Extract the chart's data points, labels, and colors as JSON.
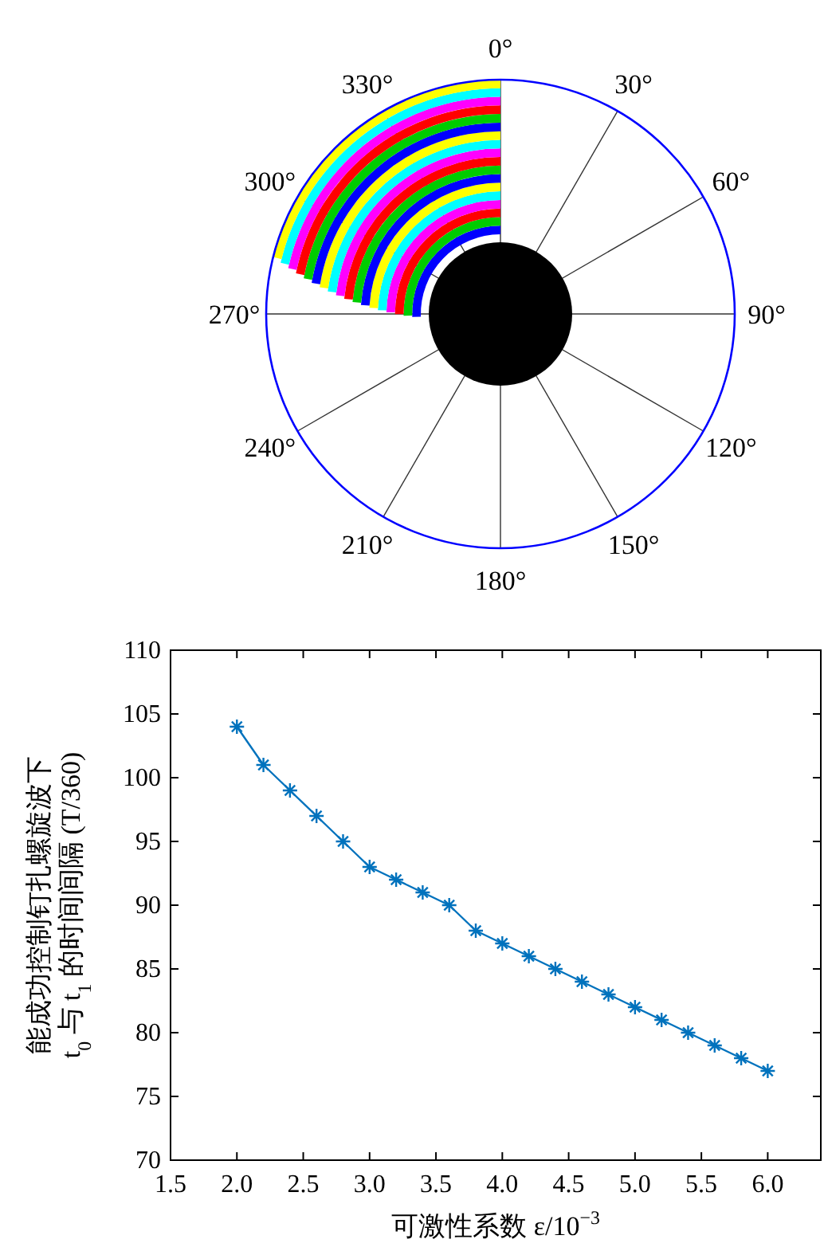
{
  "chart_data": [
    {
      "type": "other",
      "categories": [
        "0°",
        "30°",
        "60°",
        "90°",
        "120°",
        "150°",
        "180°",
        "210°",
        "240°",
        "270°",
        "300°",
        "330°"
      ]
    },
    {
      "type": "line",
      "xlabel": "可激性系数 ε/10$^{−3}$",
      "ylabel": "能成功控制钉扎螺旋波下\nt$_{0}$ 与 t$_{1}$ 的时间间隔 (T/360)",
      "x": [
        2.0,
        2.2,
        2.4,
        2.6,
        2.8,
        3.0,
        3.2,
        3.4,
        3.6,
        3.8,
        4.0,
        4.2,
        4.4,
        4.6,
        4.8,
        5.0,
        5.2,
        5.4,
        5.6,
        5.8,
        6.0
      ],
      "series": [
        {
          "color": "#0072bd",
          "values": [
            104,
            101,
            99,
            97,
            95,
            93,
            92,
            91,
            90,
            88,
            87,
            86,
            85,
            84,
            83,
            82,
            81,
            80,
            79,
            78,
            77
          ]
        }
      ],
      "marker": "cross",
      "xlim": [
        1.5,
        6.4
      ],
      "xticks": [
        {
          "value": 1.5,
          "label": "1.5"
        },
        {
          "value": 2,
          "label": "2.0"
        },
        {
          "value": 2.5,
          "label": "2.5"
        },
        {
          "value": 3,
          "label": "3.0"
        },
        {
          "value": 3.5,
          "label": "3.5"
        },
        {
          "value": 4,
          "label": "4.0"
        },
        {
          "value": 4.5,
          "label": "4.5"
        },
        {
          "value": 5,
          "label": "5.0"
        },
        {
          "value": 5.5,
          "label": "5.5"
        },
        {
          "value": 6,
          "label": "6.0"
        }
      ],
      "ylim": [
        70,
        110
      ],
      "yticks": [
        70,
        75,
        80,
        85,
        90,
        95,
        100,
        105,
        110
      ]
    }
  ]
}
